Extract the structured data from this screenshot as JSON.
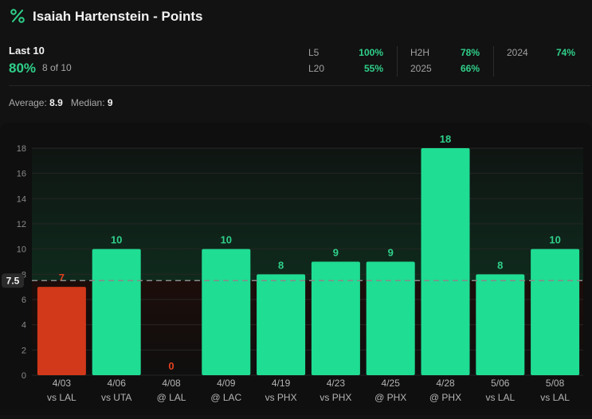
{
  "header": {
    "title": "Isaiah Hartenstein - Points",
    "icon": "percent-icon"
  },
  "summary": {
    "label": "Last 10",
    "pct": "80%",
    "count": "8 of 10",
    "splits": [
      {
        "label": "L5",
        "value": "100%"
      },
      {
        "label": "L20",
        "value": "55%"
      },
      {
        "label": "H2H",
        "value": "78%"
      },
      {
        "label": "2025",
        "value": "66%"
      },
      {
        "label": "2024",
        "value": "74%"
      }
    ],
    "average_label": "Average:",
    "average": "8.9",
    "median_label": "Median:",
    "median": "9"
  },
  "colors": {
    "hit": "#1fdd93",
    "miss": "#d2381a",
    "hit_label": "#2fd08a",
    "miss_label": "#e2401f"
  },
  "chart_data": {
    "type": "bar",
    "line": 7.5,
    "line_label": "7.5",
    "ylim": [
      0,
      18
    ],
    "yticks": [
      0,
      2,
      4,
      6,
      8,
      10,
      12,
      14,
      16,
      18
    ],
    "categories": [
      {
        "date": "4/03",
        "opp": "vs LAL"
      },
      {
        "date": "4/06",
        "opp": "vs UTA"
      },
      {
        "date": "4/08",
        "opp": "@ LAL"
      },
      {
        "date": "4/09",
        "opp": "@ LAC"
      },
      {
        "date": "4/19",
        "opp": "vs PHX"
      },
      {
        "date": "4/23",
        "opp": "vs PHX"
      },
      {
        "date": "4/25",
        "opp": "@ PHX"
      },
      {
        "date": "4/28",
        "opp": "@ PHX"
      },
      {
        "date": "5/06",
        "opp": "vs LAL"
      },
      {
        "date": "5/08",
        "opp": "vs LAL"
      }
    ],
    "values": [
      7,
      10,
      0,
      10,
      8,
      9,
      9,
      18,
      8,
      10
    ]
  }
}
